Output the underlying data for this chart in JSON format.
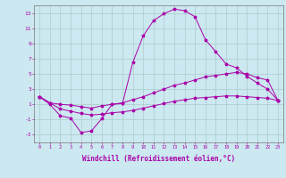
{
  "background_color": "#cce8f0",
  "grid_color": "#aacccc",
  "line_color": "#aa00aa",
  "xlabel": "Windchill (Refroidissement éolien,°C)",
  "xlabel_fontsize": 5.5,
  "ytick_labels": [
    "-3",
    "-1",
    "1",
    "3",
    "5",
    "7",
    "9",
    "11",
    "13"
  ],
  "ytick_values": [
    -3,
    -1,
    1,
    3,
    5,
    7,
    9,
    11,
    13
  ],
  "xtick_values": [
    0,
    1,
    2,
    3,
    4,
    5,
    6,
    7,
    8,
    9,
    10,
    11,
    12,
    13,
    14,
    15,
    16,
    17,
    18,
    19,
    20,
    21,
    22,
    23
  ],
  "ylim": [
    -4,
    14
  ],
  "xlim": [
    -0.5,
    23.5
  ],
  "curve1_x": [
    0,
    1,
    2,
    3,
    4,
    5,
    6,
    7,
    8,
    9,
    10,
    11,
    12,
    13,
    14,
    15,
    16,
    17,
    18,
    19,
    20,
    21,
    22,
    23
  ],
  "curve1_y": [
    2,
    1,
    -0.5,
    -0.8,
    -2.7,
    -2.5,
    -0.9,
    1.0,
    1.1,
    6.5,
    10.0,
    12.0,
    12.9,
    13.5,
    13.3,
    12.5,
    9.5,
    7.9,
    6.3,
    5.8,
    4.7,
    3.8,
    3.0,
    1.5
  ],
  "curve2_x": [
    0,
    1,
    2,
    3,
    4,
    5,
    6,
    7,
    8,
    9,
    10,
    11,
    12,
    13,
    14,
    15,
    16,
    17,
    18,
    19,
    20,
    21,
    22,
    23
  ],
  "curve2_y": [
    2.0,
    1.2,
    1.0,
    0.9,
    0.7,
    0.5,
    0.8,
    1.0,
    1.2,
    1.6,
    2.0,
    2.5,
    3.0,
    3.5,
    3.8,
    4.2,
    4.6,
    4.8,
    5.0,
    5.2,
    5.0,
    4.5,
    4.2,
    1.5
  ],
  "curve3_x": [
    0,
    1,
    2,
    3,
    4,
    5,
    6,
    7,
    8,
    9,
    10,
    11,
    12,
    13,
    14,
    15,
    16,
    17,
    18,
    19,
    20,
    21,
    22,
    23
  ],
  "curve3_y": [
    2.0,
    1.2,
    0.4,
    0.1,
    -0.2,
    -0.4,
    -0.3,
    -0.1,
    0.0,
    0.2,
    0.5,
    0.8,
    1.1,
    1.4,
    1.6,
    1.8,
    1.9,
    2.0,
    2.1,
    2.1,
    2.0,
    1.9,
    1.8,
    1.5
  ]
}
